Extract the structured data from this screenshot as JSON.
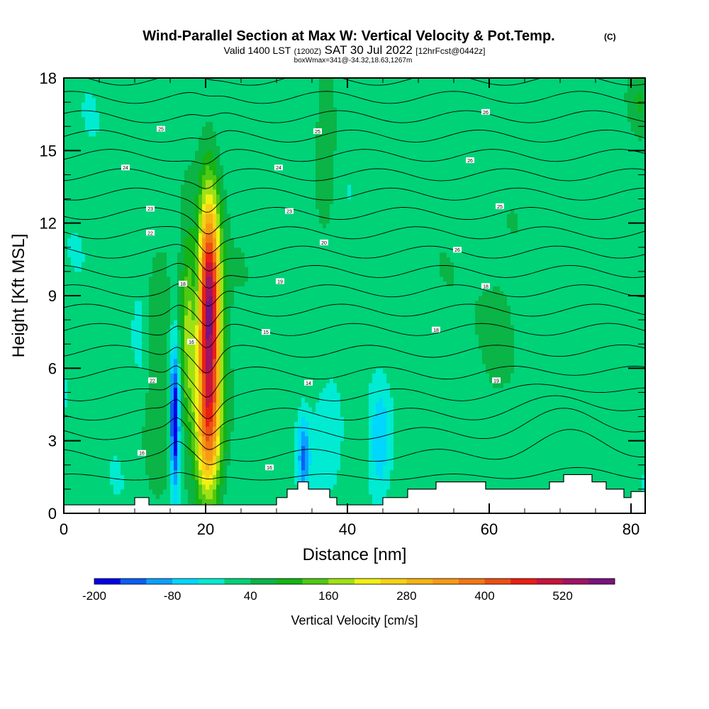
{
  "chart_data": {
    "type": "heatmap",
    "title": "Wind-Parallel Section at Max W: Vertical Velocity & Pot.Temp.",
    "title_units": "(C)",
    "subtitle": {
      "valid": "Valid 1400 LST",
      "utc": "(1200Z)",
      "date": "SAT 30 Jul 2022",
      "fcst": "[12hrFcst@0442z]"
    },
    "note": "boxWmax=341@-34.32,18.63,1267m",
    "xlabel": "Distance [nm]",
    "ylabel": "Height [Kft MSL]",
    "xlim": [
      0,
      82
    ],
    "ylim": [
      0,
      18
    ],
    "xticks": [
      "0",
      "20",
      "40",
      "60",
      "80"
    ],
    "yticks": [
      "0",
      "3",
      "6",
      "9",
      "12",
      "15",
      "18"
    ],
    "colorbar": {
      "label": "Vertical Velocity [cm/s]",
      "tick_labels": [
        "-200",
        "-80",
        "40",
        "160",
        "280",
        "400",
        "520"
      ],
      "tick_values": [
        -200,
        -80,
        40,
        160,
        280,
        400,
        520
      ],
      "bins": [
        -200,
        -160,
        -120,
        -80,
        -40,
        0,
        40,
        80,
        120,
        160,
        200,
        240,
        280,
        320,
        360,
        400,
        440,
        480,
        520,
        560,
        600
      ],
      "colors": [
        "#0000e6",
        "#0a5ff2",
        "#0aa0ff",
        "#00d7ff",
        "#00ebd2",
        "#00d278",
        "#0ab446",
        "#14b414",
        "#50c814",
        "#a0e114",
        "#f0f014",
        "#f5d214",
        "#f5b414",
        "#f59b14",
        "#f07814",
        "#eb5014",
        "#eb1e14",
        "#c8143c",
        "#a01464",
        "#78147d"
      ]
    },
    "background_velocity": 10,
    "updrafts": [
      {
        "x": 20.5,
        "z": 8.5,
        "peak": 560,
        "sx": 1.1,
        "sz": 3.2
      },
      {
        "x": 20.3,
        "z": 3.2,
        "peak": 260,
        "sx": 1.3,
        "sz": 2.0
      },
      {
        "x": 17.6,
        "z": 7.5,
        "peak": 140,
        "sx": 0.8,
        "sz": 3.0
      },
      {
        "x": 13.5,
        "z": 6.0,
        "peak": 60,
        "sx": 2.0,
        "sz": 4.0
      },
      {
        "x": 37.0,
        "z": 15.0,
        "peak": 70,
        "sx": 1.0,
        "sz": 2.0
      },
      {
        "x": 81.0,
        "z": 17.0,
        "peak": 70,
        "sx": 1.5,
        "sz": 1.2
      },
      {
        "x": 60.0,
        "z": 8.0,
        "peak": 30,
        "sx": 8.0,
        "sz": 5.0
      },
      {
        "x": 25.0,
        "z": 9.0,
        "peak": 20,
        "sx": 6.0,
        "sz": 6.0
      }
    ],
    "downdrafts": [
      {
        "x": 15.7,
        "z": 3.5,
        "peak": -210,
        "sx": 0.45,
        "sz": 1.9
      },
      {
        "x": 15.5,
        "z": 6.0,
        "peak": -80,
        "sx": 0.6,
        "sz": 2.5
      },
      {
        "x": 18.6,
        "z": 9.5,
        "peak": -55,
        "sx": 0.5,
        "sz": 1.8
      },
      {
        "x": 33.8,
        "z": 2.3,
        "peak": -140,
        "sx": 0.6,
        "sz": 1.2
      },
      {
        "x": 44.5,
        "z": 3.0,
        "peak": -90,
        "sx": 0.9,
        "sz": 1.5
      },
      {
        "x": 37.5,
        "z": 3.5,
        "peak": -40,
        "sx": 1.5,
        "sz": 1.2
      },
      {
        "x": 11.0,
        "z": 7.5,
        "peak": -35,
        "sx": 0.8,
        "sz": 2.0
      }
    ],
    "terrain": {
      "x": [
        0,
        10,
        10,
        12,
        12,
        30,
        30,
        31.5,
        31.5,
        33,
        33,
        34.5,
        34.5,
        37.5,
        37.5,
        38.5,
        38.5,
        45,
        45,
        47,
        47,
        48.5,
        48.5,
        52.5,
        52.5,
        59.5,
        59.5,
        62,
        62,
        68.5,
        68.5,
        70.5,
        70.5,
        72.5,
        72.5,
        74.5,
        74.5,
        76.5,
        76.5,
        79,
        79,
        80,
        80,
        82
      ],
      "z": [
        0.35,
        0.35,
        0.65,
        0.65,
        0.35,
        0.35,
        0.65,
        0.65,
        1.0,
        1.0,
        1.3,
        1.3,
        1.0,
        1.0,
        0.65,
        0.65,
        0.35,
        0.35,
        0.65,
        0.65,
        0.65,
        0.65,
        1.0,
        1.0,
        1.3,
        1.3,
        1.0,
        1.0,
        1.0,
        1.0,
        1.3,
        1.3,
        1.6,
        1.6,
        1.6,
        1.6,
        1.3,
        1.3,
        1.0,
        1.0,
        0.65,
        0.65,
        0.9,
        0.9
      ]
    },
    "isentropes": {
      "levels": [
        10,
        11,
        12,
        13,
        14,
        15,
        16,
        17,
        18,
        19,
        20,
        21,
        22,
        23,
        24,
        25,
        26,
        27,
        28,
        29,
        30
      ],
      "base_heights": [
        1.5,
        2.4,
        3.3,
        4.1,
        4.9,
        5.8,
        6.7,
        7.6,
        8.4,
        9.2,
        10.0,
        10.8,
        11.6,
        12.4,
        13.2,
        14.0,
        14.8,
        15.6,
        16.4,
        17.2,
        17.95
      ],
      "labels": [
        {
          "text": "16",
          "x": 11,
          "z": 2.5
        },
        {
          "text": "22",
          "x": 12.5,
          "z": 5.5
        },
        {
          "text": "16",
          "x": 18,
          "z": 7.1
        },
        {
          "text": "18",
          "x": 16.8,
          "z": 9.5
        },
        {
          "text": "14",
          "x": 34.5,
          "z": 5.4
        },
        {
          "text": "16",
          "x": 29,
          "z": 1.9
        },
        {
          "text": "15",
          "x": 28.5,
          "z": 7.5
        },
        {
          "text": "19",
          "x": 30.5,
          "z": 9.6
        },
        {
          "text": "19",
          "x": 61,
          "z": 5.5
        },
        {
          "text": "18",
          "x": 52.5,
          "z": 7.6
        },
        {
          "text": "18",
          "x": 59.5,
          "z": 9.4
        },
        {
          "text": "20",
          "x": 36.7,
          "z": 11.2
        },
        {
          "text": "23",
          "x": 31.8,
          "z": 12.5
        },
        {
          "text": "22",
          "x": 12.2,
          "z": 11.6
        },
        {
          "text": "23",
          "x": 12.2,
          "z": 12.6
        },
        {
          "text": "24",
          "x": 8.7,
          "z": 14.3
        },
        {
          "text": "24",
          "x": 30.3,
          "z": 14.3
        },
        {
          "text": "25",
          "x": 13.7,
          "z": 15.9
        },
        {
          "text": "25",
          "x": 35.8,
          "z": 15.8
        },
        {
          "text": "26",
          "x": 55.5,
          "z": 10.9
        },
        {
          "text": "25",
          "x": 61.5,
          "z": 12.7
        },
        {
          "text": "26",
          "x": 57.3,
          "z": 14.6
        },
        {
          "text": "26",
          "x": 59.5,
          "z": 16.6
        }
      ]
    }
  }
}
